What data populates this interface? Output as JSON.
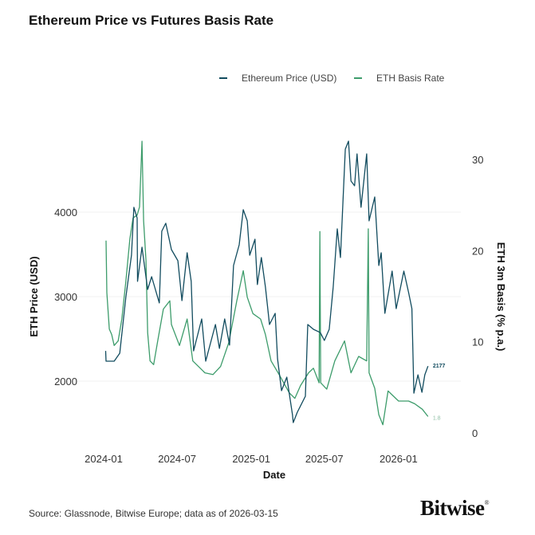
{
  "title": "Ethereum Price vs Futures Basis Rate",
  "source": "Source: Glassnode, Bitwise Europe; data as of 2026-03-15",
  "logo": "Bitwise",
  "chart_data": {
    "type": "line",
    "title": "Ethereum Price vs Futures Basis Rate",
    "xlabel": "Date",
    "ylabel": "ETH Price (USD)",
    "y2label": "ETH 3m Basis (% p.a.)",
    "x_ticks": [
      "2024-01",
      "2024-07",
      "2025-01",
      "2025-07",
      "2026-01"
    ],
    "y_ticks": [
      2000,
      3000,
      4000
    ],
    "y2_ticks": [
      0,
      10,
      20,
      30
    ],
    "ylim": [
      1450,
      4950
    ],
    "y2lim": [
      0,
      32
    ],
    "grid": "horizontal",
    "legend": "top-right",
    "colors": {
      "price": "#124c5f",
      "basis": "#3d9c6b"
    },
    "end_labels": {
      "price": "2177",
      "basis": "1.8"
    },
    "series": [
      {
        "name": "Ethereum Price (USD)",
        "axis": "left",
        "points": [
          [
            "2024-01-06",
            2358
          ],
          [
            "2024-01-07",
            2236
          ],
          [
            "2024-01-27",
            2236
          ],
          [
            "2024-02-10",
            2330
          ],
          [
            "2024-02-25",
            2990
          ],
          [
            "2024-03-10",
            3490
          ],
          [
            "2024-03-16",
            4057
          ],
          [
            "2024-03-24",
            3930
          ],
          [
            "2024-03-25",
            3180
          ],
          [
            "2024-04-05",
            3585
          ],
          [
            "2024-04-13",
            3300
          ],
          [
            "2024-04-19",
            3085
          ],
          [
            "2024-04-29",
            3236
          ],
          [
            "2024-05-18",
            2925
          ],
          [
            "2024-05-24",
            3774
          ],
          [
            "2024-06-03",
            3868
          ],
          [
            "2024-06-17",
            3557
          ],
          [
            "2024-07-03",
            3425
          ],
          [
            "2024-07-13",
            2953
          ],
          [
            "2024-07-26",
            3519
          ],
          [
            "2024-08-05",
            3180
          ],
          [
            "2024-08-11",
            2358
          ],
          [
            "2024-08-31",
            2736
          ],
          [
            "2024-09-10",
            2236
          ],
          [
            "2024-10-04",
            2670
          ],
          [
            "2024-10-14",
            2387
          ],
          [
            "2024-10-27",
            2736
          ],
          [
            "2024-11-08",
            2425
          ],
          [
            "2024-11-18",
            3368
          ],
          [
            "2024-12-02",
            3613
          ],
          [
            "2024-12-12",
            4028
          ],
          [
            "2024-12-22",
            3896
          ],
          [
            "2024-12-28",
            3490
          ],
          [
            "2025-01-10",
            3679
          ],
          [
            "2025-01-16",
            3142
          ],
          [
            "2025-01-26",
            3462
          ],
          [
            "2025-02-05",
            3113
          ],
          [
            "2025-02-15",
            2670
          ],
          [
            "2025-03-01",
            2802
          ],
          [
            "2025-03-07",
            2264
          ],
          [
            "2025-03-17",
            1887
          ],
          [
            "2025-03-30",
            2047
          ],
          [
            "2025-04-13",
            1604
          ],
          [
            "2025-04-15",
            1509
          ],
          [
            "2025-04-25",
            1632
          ],
          [
            "2025-05-15",
            1821
          ],
          [
            "2025-05-21",
            2670
          ],
          [
            "2025-06-04",
            2613
          ],
          [
            "2025-06-21",
            2575
          ],
          [
            "2025-07-01",
            2481
          ],
          [
            "2025-07-13",
            2613
          ],
          [
            "2025-07-23",
            3113
          ],
          [
            "2025-08-02",
            3802
          ],
          [
            "2025-08-10",
            3462
          ],
          [
            "2025-08-22",
            4745
          ],
          [
            "2025-08-30",
            4840
          ],
          [
            "2025-09-05",
            4368
          ],
          [
            "2025-09-14",
            4311
          ],
          [
            "2025-09-20",
            4689
          ],
          [
            "2025-09-30",
            4057
          ],
          [
            "2025-10-14",
            4689
          ],
          [
            "2025-10-20",
            3896
          ],
          [
            "2025-11-03",
            4179
          ],
          [
            "2025-11-13",
            3368
          ],
          [
            "2025-11-19",
            3519
          ],
          [
            "2025-11-28",
            2802
          ],
          [
            "2025-12-16",
            3302
          ],
          [
            "2025-12-26",
            2858
          ],
          [
            "2026-01-14",
            3302
          ],
          [
            "2026-01-26",
            3047
          ],
          [
            "2026-02-03",
            2858
          ],
          [
            "2026-02-08",
            1858
          ],
          [
            "2026-02-18",
            2075
          ],
          [
            "2026-02-28",
            1868
          ],
          [
            "2026-03-07",
            2075
          ],
          [
            "2026-03-15",
            2177
          ]
        ]
      },
      {
        "name": "ETH Basis Rate",
        "axis": "right",
        "points": [
          [
            "2024-01-07",
            21.1
          ],
          [
            "2024-01-09",
            15.4
          ],
          [
            "2024-01-15",
            11.4
          ],
          [
            "2024-01-21",
            10.8
          ],
          [
            "2024-01-27",
            9.6
          ],
          [
            "2024-02-06",
            10.1
          ],
          [
            "2024-02-15",
            12.5
          ],
          [
            "2024-02-25",
            16.6
          ],
          [
            "2024-03-06",
            21.3
          ],
          [
            "2024-03-14",
            23.6
          ],
          [
            "2024-03-24",
            23.9
          ],
          [
            "2024-03-30",
            24.8
          ],
          [
            "2024-04-05",
            32.0
          ],
          [
            "2024-04-09",
            23.3
          ],
          [
            "2024-04-15",
            18.9
          ],
          [
            "2024-04-19",
            11.0
          ],
          [
            "2024-04-25",
            7.9
          ],
          [
            "2024-05-04",
            7.5
          ],
          [
            "2024-05-14",
            10.1
          ],
          [
            "2024-05-28",
            13.6
          ],
          [
            "2024-06-13",
            14.5
          ],
          [
            "2024-06-17",
            11.9
          ],
          [
            "2024-07-07",
            9.6
          ],
          [
            "2024-07-26",
            12.5
          ],
          [
            "2024-08-09",
            7.9
          ],
          [
            "2024-09-08",
            6.6
          ],
          [
            "2024-09-28",
            6.4
          ],
          [
            "2024-10-17",
            7.3
          ],
          [
            "2024-11-06",
            9.9
          ],
          [
            "2024-11-26",
            14.5
          ],
          [
            "2024-12-12",
            17.8
          ],
          [
            "2024-12-22",
            14.9
          ],
          [
            "2025-01-05",
            13.1
          ],
          [
            "2025-01-24",
            12.5
          ],
          [
            "2025-02-05",
            10.8
          ],
          [
            "2025-02-19",
            7.9
          ],
          [
            "2025-03-11",
            6.4
          ],
          [
            "2025-04-05",
            4.4
          ],
          [
            "2025-04-19",
            3.8
          ],
          [
            "2025-05-03",
            5.2
          ],
          [
            "2025-05-23",
            6.6
          ],
          [
            "2025-06-04",
            7.1
          ],
          [
            "2025-06-18",
            5.5
          ],
          [
            "2025-06-20",
            22.1
          ],
          [
            "2025-06-22",
            5.5
          ],
          [
            "2025-07-07",
            4.8
          ],
          [
            "2025-07-27",
            7.9
          ],
          [
            "2025-08-20",
            10.1
          ],
          [
            "2025-09-05",
            6.6
          ],
          [
            "2025-09-24",
            8.4
          ],
          [
            "2025-10-14",
            7.9
          ],
          [
            "2025-10-18",
            22.4
          ],
          [
            "2025-10-20",
            6.6
          ],
          [
            "2025-11-03",
            4.9
          ],
          [
            "2025-11-13",
            2.0
          ],
          [
            "2025-11-23",
            0.9
          ],
          [
            "2025-12-06",
            4.6
          ],
          [
            "2026-01-01",
            3.5
          ],
          [
            "2026-01-26",
            3.5
          ],
          [
            "2026-02-10",
            3.2
          ],
          [
            "2026-03-01",
            2.6
          ],
          [
            "2026-03-15",
            1.8
          ]
        ]
      }
    ]
  }
}
